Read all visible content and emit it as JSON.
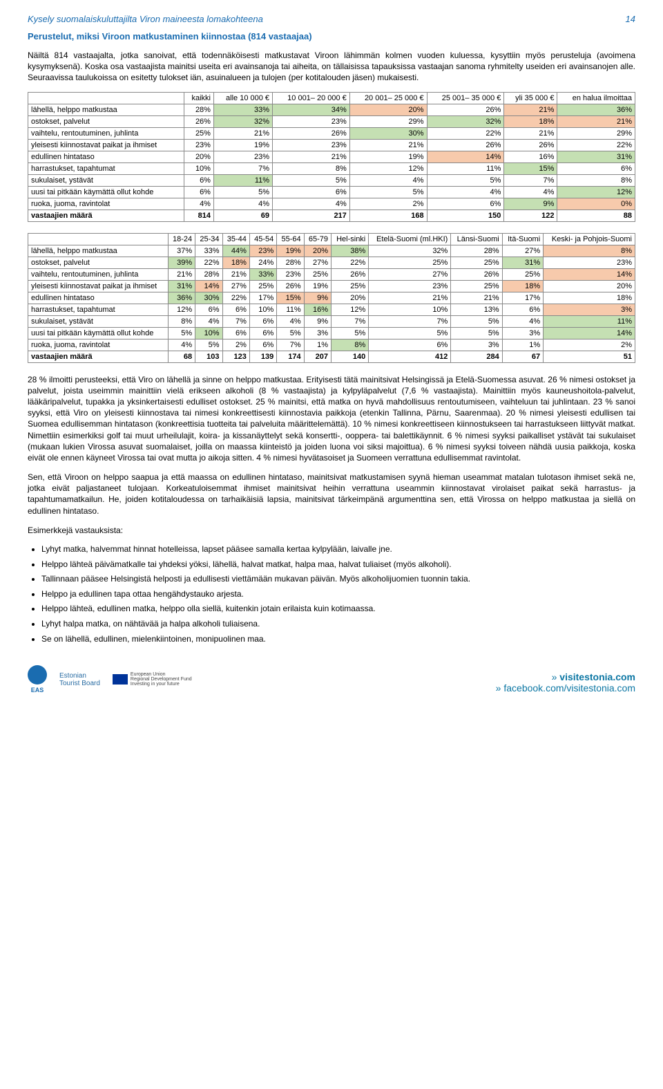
{
  "header": {
    "title": "Kysely suomalaiskuluttajilta Viron maineesta lomakohteena",
    "page": "14"
  },
  "subhead": "Perustelut, miksi Viroon matkustaminen kiinnostaa (814 vastaajaa)",
  "para1": "Näiltä 814 vastaajalta, jotka sanoivat, että todennäköisesti matkustavat Viroon lähimmän kolmen vuoden kuluessa, kysyttiin myös perusteluja (avoimena kysymyksenä). Koska osa vastaajista mainitsi useita eri avainsanoja tai aiheita, on tällaisissa tapauksissa vastaajan sanoma ryhmitelty useiden eri avainsanojen alle. Seuraavissa taulukoissa on esitetty tulokset iän, asuinalueen ja tulojen (per kotitalouden jäsen) mukaisesti.",
  "table1": {
    "columns": [
      "",
      "kaikki",
      "alle 10 000 €",
      "10 001– 20 000 €",
      "20 001– 25 000 €",
      "25 001– 35 000 €",
      "yli 35 000 €",
      "en halua ilmoittaa"
    ],
    "rows": [
      {
        "label": "lähellä, helppo matkustaa",
        "cells": [
          {
            "v": "28%"
          },
          {
            "v": "33%",
            "c": "hi"
          },
          {
            "v": "34%",
            "c": "hi"
          },
          {
            "v": "20%",
            "c": "lo"
          },
          {
            "v": "26%"
          },
          {
            "v": "21%",
            "c": "lo"
          },
          {
            "v": "36%",
            "c": "hi"
          }
        ]
      },
      {
        "label": "ostokset, palvelut",
        "cells": [
          {
            "v": "26%"
          },
          {
            "v": "32%",
            "c": "hi"
          },
          {
            "v": "23%"
          },
          {
            "v": "29%"
          },
          {
            "v": "32%",
            "c": "hi"
          },
          {
            "v": "18%",
            "c": "lo"
          },
          {
            "v": "21%",
            "c": "lo"
          }
        ]
      },
      {
        "label": "vaihtelu, rentoutuminen, juhlinta",
        "cells": [
          {
            "v": "25%"
          },
          {
            "v": "21%"
          },
          {
            "v": "26%"
          },
          {
            "v": "30%",
            "c": "hi"
          },
          {
            "v": "22%"
          },
          {
            "v": "21%"
          },
          {
            "v": "29%"
          }
        ]
      },
      {
        "label": "yleisesti kiinnostavat paikat ja ihmiset",
        "cells": [
          {
            "v": "23%"
          },
          {
            "v": "19%"
          },
          {
            "v": "23%"
          },
          {
            "v": "21%"
          },
          {
            "v": "26%"
          },
          {
            "v": "26%"
          },
          {
            "v": "22%"
          }
        ]
      },
      {
        "label": "edullinen hintataso",
        "cells": [
          {
            "v": "20%"
          },
          {
            "v": "23%"
          },
          {
            "v": "21%"
          },
          {
            "v": "19%"
          },
          {
            "v": "14%",
            "c": "lo"
          },
          {
            "v": "16%"
          },
          {
            "v": "31%",
            "c": "hi"
          }
        ]
      },
      {
        "label": "harrastukset, tapahtumat",
        "cells": [
          {
            "v": "10%"
          },
          {
            "v": "7%"
          },
          {
            "v": "8%"
          },
          {
            "v": "12%"
          },
          {
            "v": "11%"
          },
          {
            "v": "15%",
            "c": "hi"
          },
          {
            "v": "6%"
          }
        ]
      },
      {
        "label": "sukulaiset, ystävät",
        "cells": [
          {
            "v": "6%"
          },
          {
            "v": "11%",
            "c": "hi"
          },
          {
            "v": "5%"
          },
          {
            "v": "4%"
          },
          {
            "v": "5%"
          },
          {
            "v": "7%"
          },
          {
            "v": "8%"
          }
        ]
      },
      {
        "label": "uusi tai pitkään käymättä ollut kohde",
        "cells": [
          {
            "v": "6%"
          },
          {
            "v": "5%"
          },
          {
            "v": "6%"
          },
          {
            "v": "5%"
          },
          {
            "v": "4%"
          },
          {
            "v": "4%"
          },
          {
            "v": "12%",
            "c": "hi"
          }
        ]
      },
      {
        "label": "ruoka, juoma, ravintolat",
        "cells": [
          {
            "v": "4%"
          },
          {
            "v": "4%"
          },
          {
            "v": "4%"
          },
          {
            "v": "2%"
          },
          {
            "v": "6%"
          },
          {
            "v": "9%",
            "c": "hi"
          },
          {
            "v": "0%",
            "c": "lo"
          }
        ]
      },
      {
        "label": "vastaajien määrä",
        "bold": true,
        "cells": [
          {
            "v": "814"
          },
          {
            "v": "69"
          },
          {
            "v": "217"
          },
          {
            "v": "168"
          },
          {
            "v": "150"
          },
          {
            "v": "122"
          },
          {
            "v": "88"
          }
        ]
      }
    ]
  },
  "table2": {
    "columns": [
      "",
      "18-24",
      "25-34",
      "35-44",
      "45-54",
      "55-64",
      "65-79",
      "Hel-sinki",
      "Etelä-Suomi (ml.HKI)",
      "Länsi-Suomi",
      "Itä-Suomi",
      "Keski- ja Pohjois-Suomi"
    ],
    "rows": [
      {
        "label": "lähellä, helppo matkustaa",
        "cells": [
          {
            "v": "37%"
          },
          {
            "v": "33%"
          },
          {
            "v": "44%",
            "c": "hi"
          },
          {
            "v": "23%",
            "c": "lo"
          },
          {
            "v": "19%",
            "c": "lo"
          },
          {
            "v": "20%",
            "c": "lo"
          },
          {
            "v": "38%",
            "c": "hi"
          },
          {
            "v": "32%"
          },
          {
            "v": "28%"
          },
          {
            "v": "27%"
          },
          {
            "v": "8%",
            "c": "lo"
          }
        ]
      },
      {
        "label": "ostokset, palvelut",
        "cells": [
          {
            "v": "39%",
            "c": "hi"
          },
          {
            "v": "22%"
          },
          {
            "v": "18%",
            "c": "lo"
          },
          {
            "v": "24%"
          },
          {
            "v": "28%"
          },
          {
            "v": "27%"
          },
          {
            "v": "22%"
          },
          {
            "v": "25%"
          },
          {
            "v": "25%"
          },
          {
            "v": "31%",
            "c": "hi"
          },
          {
            "v": "23%"
          }
        ]
      },
      {
        "label": "vaihtelu, rentoutuminen, juhlinta",
        "cells": [
          {
            "v": "21%"
          },
          {
            "v": "28%"
          },
          {
            "v": "21%"
          },
          {
            "v": "33%",
            "c": "hi"
          },
          {
            "v": "23%"
          },
          {
            "v": "25%"
          },
          {
            "v": "26%"
          },
          {
            "v": "27%"
          },
          {
            "v": "26%"
          },
          {
            "v": "25%"
          },
          {
            "v": "14%",
            "c": "lo"
          }
        ]
      },
      {
        "label": "yleisesti kiinnostavat paikat ja ihmiset",
        "cells": [
          {
            "v": "31%",
            "c": "hi"
          },
          {
            "v": "14%",
            "c": "lo"
          },
          {
            "v": "27%"
          },
          {
            "v": "25%"
          },
          {
            "v": "26%"
          },
          {
            "v": "19%"
          },
          {
            "v": "25%"
          },
          {
            "v": "23%"
          },
          {
            "v": "25%"
          },
          {
            "v": "18%",
            "c": "lo"
          },
          {
            "v": "20%"
          }
        ]
      },
      {
        "label": "edullinen hintataso",
        "cells": [
          {
            "v": "36%",
            "c": "hi"
          },
          {
            "v": "30%",
            "c": "hi"
          },
          {
            "v": "22%"
          },
          {
            "v": "17%"
          },
          {
            "v": "15%",
            "c": "lo"
          },
          {
            "v": "9%",
            "c": "lo"
          },
          {
            "v": "20%"
          },
          {
            "v": "21%"
          },
          {
            "v": "21%"
          },
          {
            "v": "17%"
          },
          {
            "v": "18%"
          }
        ]
      },
      {
        "label": "harrastukset, tapahtumat",
        "cells": [
          {
            "v": "12%"
          },
          {
            "v": "6%"
          },
          {
            "v": "6%"
          },
          {
            "v": "10%"
          },
          {
            "v": "11%"
          },
          {
            "v": "16%",
            "c": "hi"
          },
          {
            "v": "12%"
          },
          {
            "v": "10%"
          },
          {
            "v": "13%"
          },
          {
            "v": "6%"
          },
          {
            "v": "3%",
            "c": "lo"
          }
        ]
      },
      {
        "label": "sukulaiset, ystävät",
        "cells": [
          {
            "v": "8%"
          },
          {
            "v": "4%"
          },
          {
            "v": "7%"
          },
          {
            "v": "6%"
          },
          {
            "v": "4%"
          },
          {
            "v": "9%"
          },
          {
            "v": "7%"
          },
          {
            "v": "7%"
          },
          {
            "v": "5%"
          },
          {
            "v": "4%"
          },
          {
            "v": "11%",
            "c": "hi"
          }
        ]
      },
      {
        "label": "uusi tai pitkään käymättä ollut kohde",
        "cells": [
          {
            "v": "5%"
          },
          {
            "v": "10%",
            "c": "hi"
          },
          {
            "v": "6%"
          },
          {
            "v": "6%"
          },
          {
            "v": "5%"
          },
          {
            "v": "3%"
          },
          {
            "v": "5%"
          },
          {
            "v": "5%"
          },
          {
            "v": "5%"
          },
          {
            "v": "3%"
          },
          {
            "v": "14%",
            "c": "hi"
          }
        ]
      },
      {
        "label": "ruoka, juoma, ravintolat",
        "cells": [
          {
            "v": "4%"
          },
          {
            "v": "5%"
          },
          {
            "v": "2%"
          },
          {
            "v": "6%"
          },
          {
            "v": "7%"
          },
          {
            "v": "1%"
          },
          {
            "v": "8%",
            "c": "hi"
          },
          {
            "v": "6%"
          },
          {
            "v": "3%"
          },
          {
            "v": "1%"
          },
          {
            "v": "2%"
          }
        ]
      },
      {
        "label": "vastaajien määrä",
        "bold": true,
        "cells": [
          {
            "v": "68"
          },
          {
            "v": "103"
          },
          {
            "v": "123"
          },
          {
            "v": "139"
          },
          {
            "v": "174"
          },
          {
            "v": "207"
          },
          {
            "v": "140"
          },
          {
            "v": "412"
          },
          {
            "v": "284"
          },
          {
            "v": "67"
          },
          {
            "v": "51"
          }
        ]
      }
    ]
  },
  "para2": "28 % ilmoitti perusteeksi, että Viro on lähellä ja sinne on helppo matkustaa. Erityisesti tätä mainitsivat Helsingissä ja Etelä-Suomessa asuvat. 26 % nimesi ostokset ja palvelut, joista useimmin mainittiin vielä erikseen alkoholi (8 % vastaajista) ja kylpyläpalvelut (7,6 % vastaajista). Mainittiin myös kauneushoitola-palvelut, lääkäripalvelut, tupakka ja yksinkertaisesti edulliset ostokset. 25 % mainitsi, että matka on hyvä mahdollisuus rentoutumiseen, vaihteluun tai juhlintaan. 23 % sanoi syyksi, että Viro on yleisesti kiinnostava tai nimesi konkreettisesti kiinnostavia paikkoja (etenkin Tallinna, Pärnu, Saarenmaa). 20 % nimesi yleisesti edullisen tai Suomea edullisemman hintatason (konkreettisia tuotteita tai palveluita määrittelemättä). 10 % nimesi konkreettiseen kiinnostukseen tai harrastukseen liittyvät matkat. Nimettiin esimerkiksi golf tai muut urheilulajit, koira- ja kissanäyttelyt sekä konsertti-, ooppera- tai balettikäynnit. 6 % nimesi syyksi paikalliset ystävät tai sukulaiset (mukaan lukien Virossa asuvat suomalaiset, joilla on maassa kiinteistö ja joiden luona voi siksi majoittua). 6 % nimesi syyksi toiveen nähdä uusia paikkoja, koska eivät ole ennen käyneet Virossa tai ovat mutta jo aikoja sitten. 4 % nimesi hyvätasoiset ja Suomeen verrattuna edullisemmat ravintolat.",
  "para3": "Sen, että Viroon on helppo saapua ja että maassa on edullinen hintataso, mainitsivat matkustamisen syynä hieman useammat matalan tulotason ihmiset sekä ne, jotka eivät paljastaneet tulojaan. Korkeatuloisemmat ihmiset mainitsivat heihin verrattuna useammin kiinnostavat virolaiset paikat sekä harrastus- ja tapahtumamatkailun. He, joiden kotitaloudessa on tarhaikäisiä lapsia, mainitsivat tärkeimpänä argumenttina sen, että Virossa on helppo matkustaa ja siellä on edullinen hintataso.",
  "examples_head": "Esimerkkejä vastauksista:",
  "examples": [
    "Lyhyt matka, halvemmat hinnat hotelleissa, lapset pääsee samalla kertaa kylpylään, laivalle jne.",
    "Helppo lähteä päivämatkalle tai yhdeksi yöksi, lähellä, halvat matkat, halpa maa, halvat tuliaiset (myös alkoholi).",
    "Tallinnaan pääsee Helsingistä helposti ja edullisesti viettämään mukavan päivän. Myös alkoholijuomien tuonnin takia.",
    "Helppo ja edullinen tapa ottaa hengähdystauko arjesta.",
    "Helppo lähteä, edullinen matka, helppo olla siellä, kuitenkin jotain erilaista kuin kotimaassa.",
    "Lyhyt halpa matka, on nähtävää ja halpa alkoholi tuliaisena.",
    "Se on lähellä, edullinen, mielenkiintoinen, monipuolinen maa."
  ],
  "footer": {
    "eas": "EAS",
    "estonian1": "Estonian",
    "estonian2": "Tourist Board",
    "eu1": "European Union",
    "eu2": "Regional Development Fund",
    "eu3": "Investing in your future",
    "visit1": "visitestonia.com",
    "visit2": "facebook.com/visitestonia.com"
  }
}
